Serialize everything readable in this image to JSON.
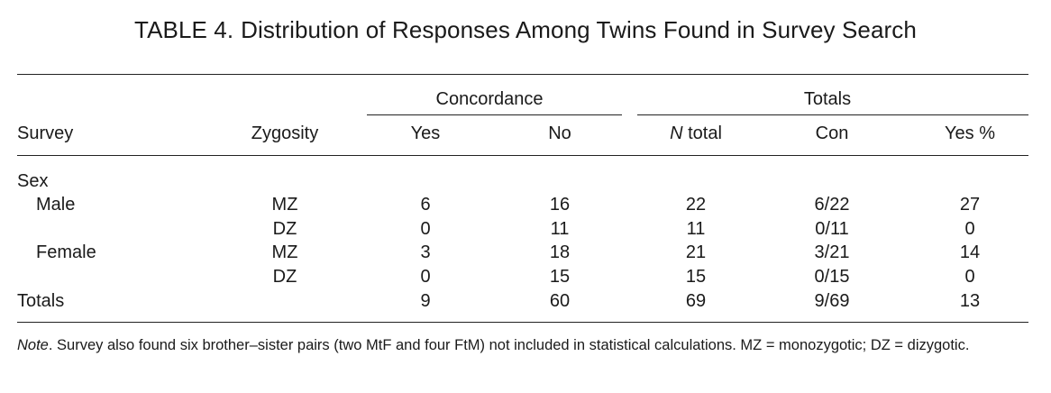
{
  "title": {
    "label": "TABLE 4.",
    "text": "Distribution of Responses Among Twins Found in Survey Search"
  },
  "header": {
    "group_concordance": "Concordance",
    "group_totals": "Totals",
    "col_survey": "Survey",
    "col_zygosity": "Zygosity",
    "col_yes": "Yes",
    "col_no": "No",
    "col_ntotal_italic": "N",
    "col_ntotal_rest": " total",
    "col_con": "Con",
    "col_yespct": "Yes %"
  },
  "rows": [
    {
      "survey": "Sex",
      "zygosity": "",
      "yes": "",
      "no": "",
      "ntotal": "",
      "con": "",
      "yespct": ""
    },
    {
      "survey": "Male",
      "zygosity": "MZ",
      "yes": "6",
      "no": "16",
      "ntotal": "22",
      "con": "6/22",
      "yespct": "27"
    },
    {
      "survey": "",
      "zygosity": "DZ",
      "yes": "0",
      "no": "11",
      "ntotal": "11",
      "con": "0/11",
      "yespct": "0"
    },
    {
      "survey": "Female",
      "zygosity": "MZ",
      "yes": "3",
      "no": "18",
      "ntotal": "21",
      "con": "3/21",
      "yespct": "14"
    },
    {
      "survey": "",
      "zygosity": "DZ",
      "yes": "0",
      "no": "15",
      "ntotal": "15",
      "con": "0/15",
      "yespct": "0"
    },
    {
      "survey": "Totals",
      "zygosity": "",
      "yes": "9",
      "no": "60",
      "ntotal": "69",
      "con": "9/69",
      "yespct": "13"
    }
  ],
  "note": {
    "label": "Note",
    "text": ". Survey also found six brother–sister pairs (two MtF and four FtM) not included in statistical calculations. MZ = monozygotic; DZ = dizygotic."
  }
}
